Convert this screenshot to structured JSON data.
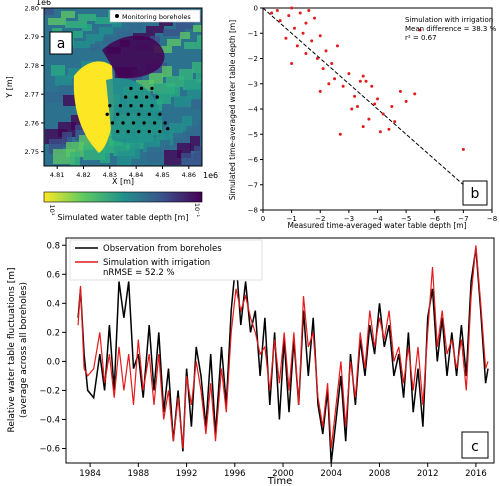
{
  "chart_data": [
    {
      "panel": "a",
      "type": "heatmap",
      "ylabel": "Y [m]",
      "xlabel": "X [m]",
      "y_exponent_label": "1e6",
      "x_exponent_label": "1e6",
      "xticks": [
        "4.81",
        "4.82",
        "4.83",
        "4.84",
        "4.85",
        "4.86"
      ],
      "yticks": [
        "2.80",
        "2.79",
        "2.78",
        "2.77",
        "2.76",
        "2.75"
      ],
      "xlim": [
        4.805,
        4.865
      ],
      "ylim": [
        2.745,
        2.8
      ],
      "legend": "Monitoring boreholes",
      "legend_placement": "top-right",
      "colorbar_label": "Simulated water table depth [m]",
      "colorbar_ticks": [
        "10¹",
        "10⁻¹"
      ],
      "colors": {
        "low": "#fde725",
        "mid": "#21918c",
        "high": "#440154"
      },
      "boreholes": [
        [
          4.83,
          2.766
        ],
        [
          4.834,
          2.766
        ],
        [
          4.838,
          2.766
        ],
        [
          4.842,
          2.766
        ],
        [
          4.846,
          2.766
        ],
        [
          4.829,
          2.763
        ],
        [
          4.833,
          2.763
        ],
        [
          4.837,
          2.763
        ],
        [
          4.841,
          2.763
        ],
        [
          4.845,
          2.763
        ],
        [
          4.849,
          2.763
        ],
        [
          4.831,
          2.76
        ],
        [
          4.835,
          2.76
        ],
        [
          4.839,
          2.76
        ],
        [
          4.843,
          2.76
        ],
        [
          4.847,
          2.76
        ],
        [
          4.851,
          2.76
        ],
        [
          4.833,
          2.757
        ],
        [
          4.837,
          2.757
        ],
        [
          4.841,
          2.757
        ],
        [
          4.845,
          2.757
        ],
        [
          4.849,
          2.757
        ],
        [
          4.836,
          2.769
        ],
        [
          4.84,
          2.769
        ],
        [
          4.844,
          2.769
        ],
        [
          4.848,
          2.769
        ],
        [
          4.838,
          2.772
        ],
        [
          4.842,
          2.772
        ],
        [
          4.846,
          2.772
        ],
        [
          4.852,
          2.758
        ]
      ]
    },
    {
      "panel": "b",
      "type": "scatter",
      "xlabel": "Measured time-averaged water table depth [m]",
      "ylabel": "Simulated time-averaged water table depth [m]",
      "xlim": [
        0,
        -8
      ],
      "ylim": [
        -8,
        0
      ],
      "xticks": [
        "0",
        "−1",
        "−2",
        "−3",
        "−4",
        "−5",
        "−6",
        "−7",
        "−8"
      ],
      "yticks": [
        "0",
        "−1",
        "−2",
        "−3",
        "−4",
        "−5",
        "−6",
        "−7",
        "−8"
      ],
      "legend": "Simulation with irrigation",
      "stats": [
        "Mean difference = 38.3 %",
        "r² = 0.67"
      ],
      "legend_placement": "top-right",
      "color": "#e41a1c",
      "one_to_one_line": true,
      "points": [
        [
          -0.3,
          -0.2
        ],
        [
          -0.5,
          -0.1
        ],
        [
          -0.6,
          -0.5
        ],
        [
          -0.8,
          -1.2
        ],
        [
          -0.9,
          -0.3
        ],
        [
          -1.0,
          0.0
        ],
        [
          -1.1,
          -0.8
        ],
        [
          -1.2,
          -1.5
        ],
        [
          -1.3,
          -0.2
        ],
        [
          -1.4,
          -1.0
        ],
        [
          -1.5,
          -0.6
        ],
        [
          -1.5,
          -1.8
        ],
        [
          -1.6,
          -0.1
        ],
        [
          -1.7,
          -1.3
        ],
        [
          -1.8,
          -0.4
        ],
        [
          -1.9,
          -2.0
        ],
        [
          -2.0,
          -1.1
        ],
        [
          -2.1,
          -2.4
        ],
        [
          -2.2,
          -1.7
        ],
        [
          -2.3,
          -3.0
        ],
        [
          -2.4,
          -2.2
        ],
        [
          -2.5,
          -2.8
        ],
        [
          -2.6,
          -1.5
        ],
        [
          -2.7,
          -5.0
        ],
        [
          -2.8,
          -3.1
        ],
        [
          -3.0,
          -2.6
        ],
        [
          -3.1,
          -4.0
        ],
        [
          -3.2,
          -3.5
        ],
        [
          -3.3,
          -3.9
        ],
        [
          -3.4,
          -2.9
        ],
        [
          -3.5,
          -2.7
        ],
        [
          -3.6,
          -2.9
        ],
        [
          -3.7,
          -4.4
        ],
        [
          -3.8,
          -3.1
        ],
        [
          -3.9,
          -3.8
        ],
        [
          -4.0,
          -3.6
        ],
        [
          -4.1,
          -4.9
        ],
        [
          -4.2,
          -4.2
        ],
        [
          -4.4,
          -4.8
        ],
        [
          -4.5,
          -3.9
        ],
        [
          -4.6,
          -4.5
        ],
        [
          -4.8,
          -3.3
        ],
        [
          -5.0,
          -3.7
        ],
        [
          -5.3,
          -3.4
        ],
        [
          -7.0,
          -5.6
        ],
        [
          -1.0,
          -2.2
        ],
        [
          -2.0,
          -3.3
        ],
        [
          -3.5,
          -4.7
        ]
      ]
    },
    {
      "panel": "c",
      "type": "line",
      "xlabel": "Time",
      "ylabel": "Relative water table fluctuations [m]",
      "ylabel2": "(average across all boreholes)",
      "xlim": [
        1982.0,
        2017.5
      ],
      "ylim": [
        -0.7,
        0.85
      ],
      "xticks": [
        "1984",
        "1988",
        "1992",
        "1996",
        "2000",
        "2004",
        "2008",
        "2012",
        "2016"
      ],
      "yticks": [
        "−0.6",
        "−0.4",
        "−0.2",
        "0.0",
        "0.2",
        "0.4",
        "0.6",
        "0.8"
      ],
      "legend_placement": "top-left",
      "series": [
        {
          "name": "Observation from boreholes",
          "color": "#000000",
          "points": [
            [
              1983.0,
              0.3
            ],
            [
              1983.2,
              0.5
            ],
            [
              1983.5,
              0.05
            ],
            [
              1983.8,
              -0.2
            ],
            [
              1984.3,
              -0.25
            ],
            [
              1984.8,
              0.05
            ],
            [
              1985.2,
              -0.2
            ],
            [
              1985.6,
              0.25
            ],
            [
              1986.0,
              -0.2
            ],
            [
              1986.4,
              0.55
            ],
            [
              1986.8,
              0.3
            ],
            [
              1987.2,
              0.55
            ],
            [
              1987.6,
              -0.05
            ],
            [
              1988.0,
              0.05
            ],
            [
              1988.4,
              -0.25
            ],
            [
              1988.9,
              0.25
            ],
            [
              1989.3,
              -0.2
            ],
            [
              1989.7,
              0.2
            ],
            [
              1990.1,
              -0.35
            ],
            [
              1990.5,
              -0.05
            ],
            [
              1990.9,
              -0.55
            ],
            [
              1991.3,
              -0.2
            ],
            [
              1991.7,
              -0.62
            ],
            [
              1992.0,
              -0.05
            ],
            [
              1992.4,
              -0.45
            ],
            [
              1992.8,
              0.1
            ],
            [
              1993.2,
              -0.1
            ],
            [
              1993.6,
              -0.45
            ],
            [
              1994.0,
              0.05
            ],
            [
              1994.4,
              -0.5
            ],
            [
              1994.9,
              0.1
            ],
            [
              1995.3,
              -0.3
            ],
            [
              1995.7,
              0.35
            ],
            [
              1996.1,
              0.7
            ],
            [
              1996.5,
              0.25
            ],
            [
              1996.9,
              0.55
            ],
            [
              1997.3,
              0.2
            ],
            [
              1997.7,
              0.35
            ],
            [
              1998.1,
              -0.1
            ],
            [
              1998.5,
              0.3
            ],
            [
              1998.9,
              -0.3
            ],
            [
              1999.3,
              0.2
            ],
            [
              1999.7,
              -0.4
            ],
            [
              2000.1,
              0.15
            ],
            [
              2000.5,
              -0.35
            ],
            [
              2000.9,
              0.15
            ],
            [
              2001.3,
              -0.3
            ],
            [
              2001.7,
              0.35
            ],
            [
              2002.1,
              -0.1
            ],
            [
              2002.5,
              0.3
            ],
            [
              2002.9,
              -0.3
            ],
            [
              2003.3,
              -0.5
            ],
            [
              2003.7,
              -0.2
            ],
            [
              2004.0,
              -0.7
            ],
            [
              2004.4,
              -0.4
            ],
            [
              2004.8,
              -0.1
            ],
            [
              2005.2,
              -0.55
            ],
            [
              2005.6,
              0.05
            ],
            [
              2006.0,
              -0.3
            ],
            [
              2006.4,
              0.15
            ],
            [
              2006.8,
              -0.1
            ],
            [
              2007.2,
              0.25
            ],
            [
              2007.6,
              0.05
            ],
            [
              2008.0,
              0.4
            ],
            [
              2008.4,
              0.1
            ],
            [
              2008.8,
              0.25
            ],
            [
              2009.2,
              -0.1
            ],
            [
              2009.6,
              0.05
            ],
            [
              2010.0,
              -0.25
            ],
            [
              2010.4,
              0.2
            ],
            [
              2010.8,
              -0.35
            ],
            [
              2011.2,
              -0.05
            ],
            [
              2011.6,
              -0.45
            ],
            [
              2012.0,
              0.3
            ],
            [
              2012.4,
              0.5
            ],
            [
              2012.8,
              0.0
            ],
            [
              2013.2,
              0.3
            ],
            [
              2013.6,
              -0.1
            ],
            [
              2014.0,
              0.2
            ],
            [
              2014.4,
              -0.1
            ],
            [
              2014.8,
              0.25
            ],
            [
              2015.2,
              -0.1
            ],
            [
              2015.6,
              0.55
            ],
            [
              2016.0,
              0.78
            ],
            [
              2016.4,
              0.35
            ],
            [
              2016.8,
              -0.15
            ],
            [
              2017.0,
              -0.05
            ]
          ]
        },
        {
          "name": "Simulation with irrigation",
          "label2": "nRMSE = 52.2 %",
          "color": "#e41a1c",
          "points": [
            [
              1983.0,
              0.25
            ],
            [
              1983.2,
              0.52
            ],
            [
              1983.5,
              -0.05
            ],
            [
              1983.8,
              -0.1
            ],
            [
              1984.3,
              -0.05
            ],
            [
              1984.8,
              0.2
            ],
            [
              1985.2,
              -0.15
            ],
            [
              1985.6,
              0.05
            ],
            [
              1986.0,
              -0.25
            ],
            [
              1986.4,
              0.1
            ],
            [
              1986.8,
              -0.2
            ],
            [
              1987.2,
              0.05
            ],
            [
              1987.6,
              -0.3
            ],
            [
              1988.0,
              0.15
            ],
            [
              1988.4,
              -0.2
            ],
            [
              1988.9,
              0.05
            ],
            [
              1989.3,
              -0.3
            ],
            [
              1989.7,
              0.05
            ],
            [
              1990.1,
              -0.4
            ],
            [
              1990.5,
              -0.2
            ],
            [
              1990.9,
              -0.55
            ],
            [
              1991.3,
              -0.25
            ],
            [
              1991.7,
              -0.6
            ],
            [
              1992.0,
              -0.1
            ],
            [
              1992.4,
              -0.3
            ],
            [
              1992.8,
              0.0
            ],
            [
              1993.2,
              -0.2
            ],
            [
              1993.6,
              -0.5
            ],
            [
              1994.0,
              -0.15
            ],
            [
              1994.4,
              -0.55
            ],
            [
              1994.9,
              -0.05
            ],
            [
              1995.3,
              -0.35
            ],
            [
              1995.7,
              0.2
            ],
            [
              1996.1,
              0.5
            ],
            [
              1996.5,
              0.35
            ],
            [
              1996.9,
              0.45
            ],
            [
              1997.3,
              0.3
            ],
            [
              1997.7,
              0.2
            ],
            [
              1998.1,
              0.05
            ],
            [
              1998.5,
              0.1
            ],
            [
              1998.9,
              -0.2
            ],
            [
              1999.3,
              0.15
            ],
            [
              1999.7,
              -0.15
            ],
            [
              2000.1,
              0.2
            ],
            [
              2000.5,
              -0.2
            ],
            [
              2000.9,
              0.2
            ],
            [
              2001.3,
              -0.3
            ],
            [
              2001.7,
              0.45
            ],
            [
              2002.1,
              0.1
            ],
            [
              2002.5,
              0.2
            ],
            [
              2002.9,
              -0.25
            ],
            [
              2003.3,
              -0.45
            ],
            [
              2003.7,
              -0.15
            ],
            [
              2004.0,
              -0.6
            ],
            [
              2004.4,
              -0.3
            ],
            [
              2004.8,
              0.0
            ],
            [
              2005.2,
              -0.45
            ],
            [
              2005.6,
              0.0
            ],
            [
              2006.0,
              -0.25
            ],
            [
              2006.4,
              0.2
            ],
            [
              2006.8,
              -0.05
            ],
            [
              2007.2,
              0.35
            ],
            [
              2007.6,
              0.1
            ],
            [
              2008.0,
              0.3
            ],
            [
              2008.4,
              0.15
            ],
            [
              2008.8,
              0.35
            ],
            [
              2009.2,
              0.0
            ],
            [
              2009.6,
              0.1
            ],
            [
              2010.0,
              -0.15
            ],
            [
              2010.4,
              0.1
            ],
            [
              2010.8,
              -0.2
            ],
            [
              2011.2,
              0.1
            ],
            [
              2011.6,
              -0.3
            ],
            [
              2012.0,
              0.2
            ],
            [
              2012.4,
              0.65
            ],
            [
              2012.8,
              0.1
            ],
            [
              2013.2,
              0.35
            ],
            [
              2013.6,
              0.05
            ],
            [
              2014.0,
              0.15
            ],
            [
              2014.4,
              -0.05
            ],
            [
              2014.8,
              0.15
            ],
            [
              2015.2,
              -0.2
            ],
            [
              2015.6,
              0.45
            ],
            [
              2016.0,
              0.8
            ],
            [
              2016.4,
              0.4
            ],
            [
              2016.8,
              -0.05
            ],
            [
              2017.0,
              0.0
            ]
          ]
        }
      ]
    }
  ]
}
